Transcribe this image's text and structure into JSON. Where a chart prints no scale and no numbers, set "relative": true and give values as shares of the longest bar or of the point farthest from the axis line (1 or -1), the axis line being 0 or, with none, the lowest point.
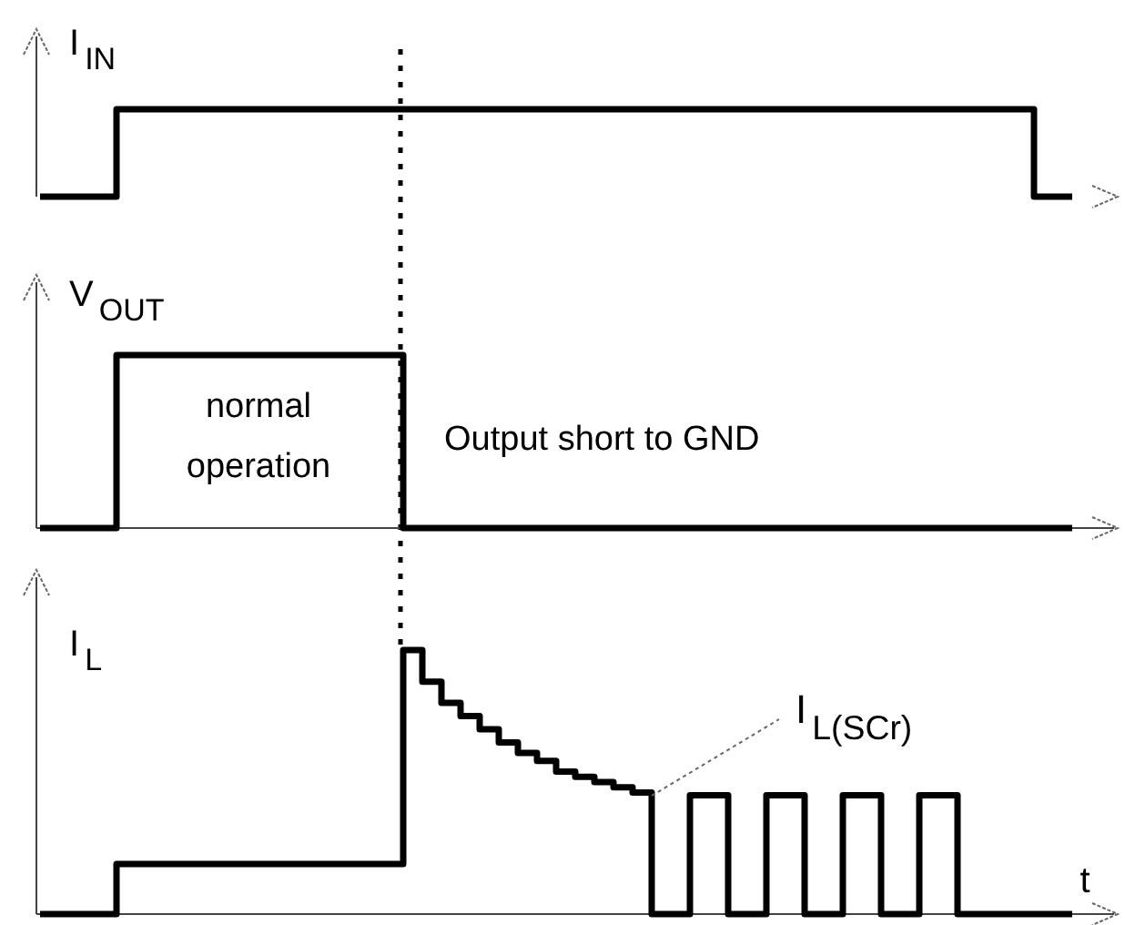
{
  "chart_data": [
    {
      "type": "step",
      "relative": true,
      "ylabel": "I$_{IN}$",
      "categories": [
        null,
        null,
        null,
        null,
        null,
        null,
        null,
        null,
        null,
        null,
        null,
        null,
        null,
        null,
        null,
        null,
        null,
        null,
        null,
        null,
        null,
        null,
        null,
        null,
        null,
        null,
        null,
        null,
        null,
        null,
        null,
        null,
        null,
        null,
        null,
        null,
        null,
        null,
        null,
        null,
        null,
        null,
        null,
        null,
        null,
        null,
        null,
        null,
        null,
        null,
        null,
        null,
        null,
        null,
        null
      ],
      "series": [
        {
          "color": "#000000",
          "values": [
            0,
            0,
            0,
            0,
            1,
            1,
            1,
            1,
            1,
            1,
            1,
            1,
            1,
            1,
            1,
            1,
            1,
            1,
            1,
            1,
            1,
            1,
            1,
            1,
            1,
            1,
            1,
            1,
            1,
            1,
            1,
            1,
            1,
            1,
            1,
            1,
            1,
            1,
            1,
            1,
            1,
            1,
            1,
            1,
            1,
            1,
            1,
            1,
            1,
            1,
            1,
            1,
            0,
            0,
            0
          ]
        }
      ]
    },
    {
      "type": "step",
      "relative": true,
      "ylabel": "V$_{OUT}$",
      "annotations": [
        "normal operation",
        "Output short to GND"
      ],
      "categories": [
        null,
        null,
        null,
        null,
        null,
        null,
        null,
        null,
        null,
        null,
        null,
        null,
        null,
        null,
        null,
        null,
        null,
        null,
        null,
        null,
        null,
        null,
        null,
        null,
        null,
        null,
        null,
        null,
        null,
        null,
        null,
        null,
        null,
        null,
        null,
        null,
        null,
        null,
        null,
        null,
        null,
        null,
        null,
        null,
        null,
        null,
        null,
        null,
        null,
        null,
        null,
        null,
        null,
        null,
        null
      ],
      "series": [
        {
          "color": "#000000",
          "values": [
            0,
            0,
            0,
            0,
            1,
            1,
            1,
            1,
            1,
            1,
            1,
            1,
            1,
            1,
            1,
            1,
            1,
            1,
            1,
            0,
            0,
            0,
            0,
            0,
            0,
            0,
            0,
            0,
            0,
            0,
            0,
            0,
            0,
            0,
            0,
            0,
            0,
            0,
            0,
            0,
            0,
            0,
            0,
            0,
            0,
            0,
            0,
            0,
            0,
            0,
            0,
            0,
            0,
            0,
            0
          ]
        }
      ]
    },
    {
      "type": "step",
      "relative": true,
      "ylabel": "I$_{L}$",
      "xlabel": "t",
      "annotations": [
        "I$_{L(SCr)}$"
      ],
      "categories": [
        null,
        null,
        null,
        null,
        null,
        null,
        null,
        null,
        null,
        null,
        null,
        null,
        null,
        null,
        null,
        null,
        null,
        null,
        null,
        null,
        null,
        null,
        null,
        null,
        null,
        null,
        null,
        null,
        null,
        null,
        null,
        null,
        null,
        null,
        null,
        null,
        null,
        null,
        null,
        null,
        null,
        null,
        null,
        null,
        null,
        null,
        null,
        null,
        null,
        null,
        null,
        null,
        null,
        null,
        null
      ],
      "series": [
        {
          "color": "#000000",
          "values": [
            0,
            0,
            0,
            0,
            0.19,
            0.19,
            0.19,
            0.19,
            0.19,
            0.19,
            0.19,
            0.19,
            0.19,
            0.19,
            0.19,
            0.19,
            0.19,
            0.19,
            0.19,
            1,
            0.88,
            0.8,
            0.75,
            0.7,
            0.65,
            0.61,
            0.58,
            0.54,
            0.52,
            0.5,
            0.48,
            0.46,
            0,
            0,
            0.45,
            0.45,
            0,
            0,
            0.45,
            0.45,
            0,
            0,
            0.45,
            0.45,
            0,
            0,
            0.45,
            0.45,
            0,
            0,
            0,
            0,
            0,
            0,
            0
          ]
        }
      ]
    }
  ]
}
